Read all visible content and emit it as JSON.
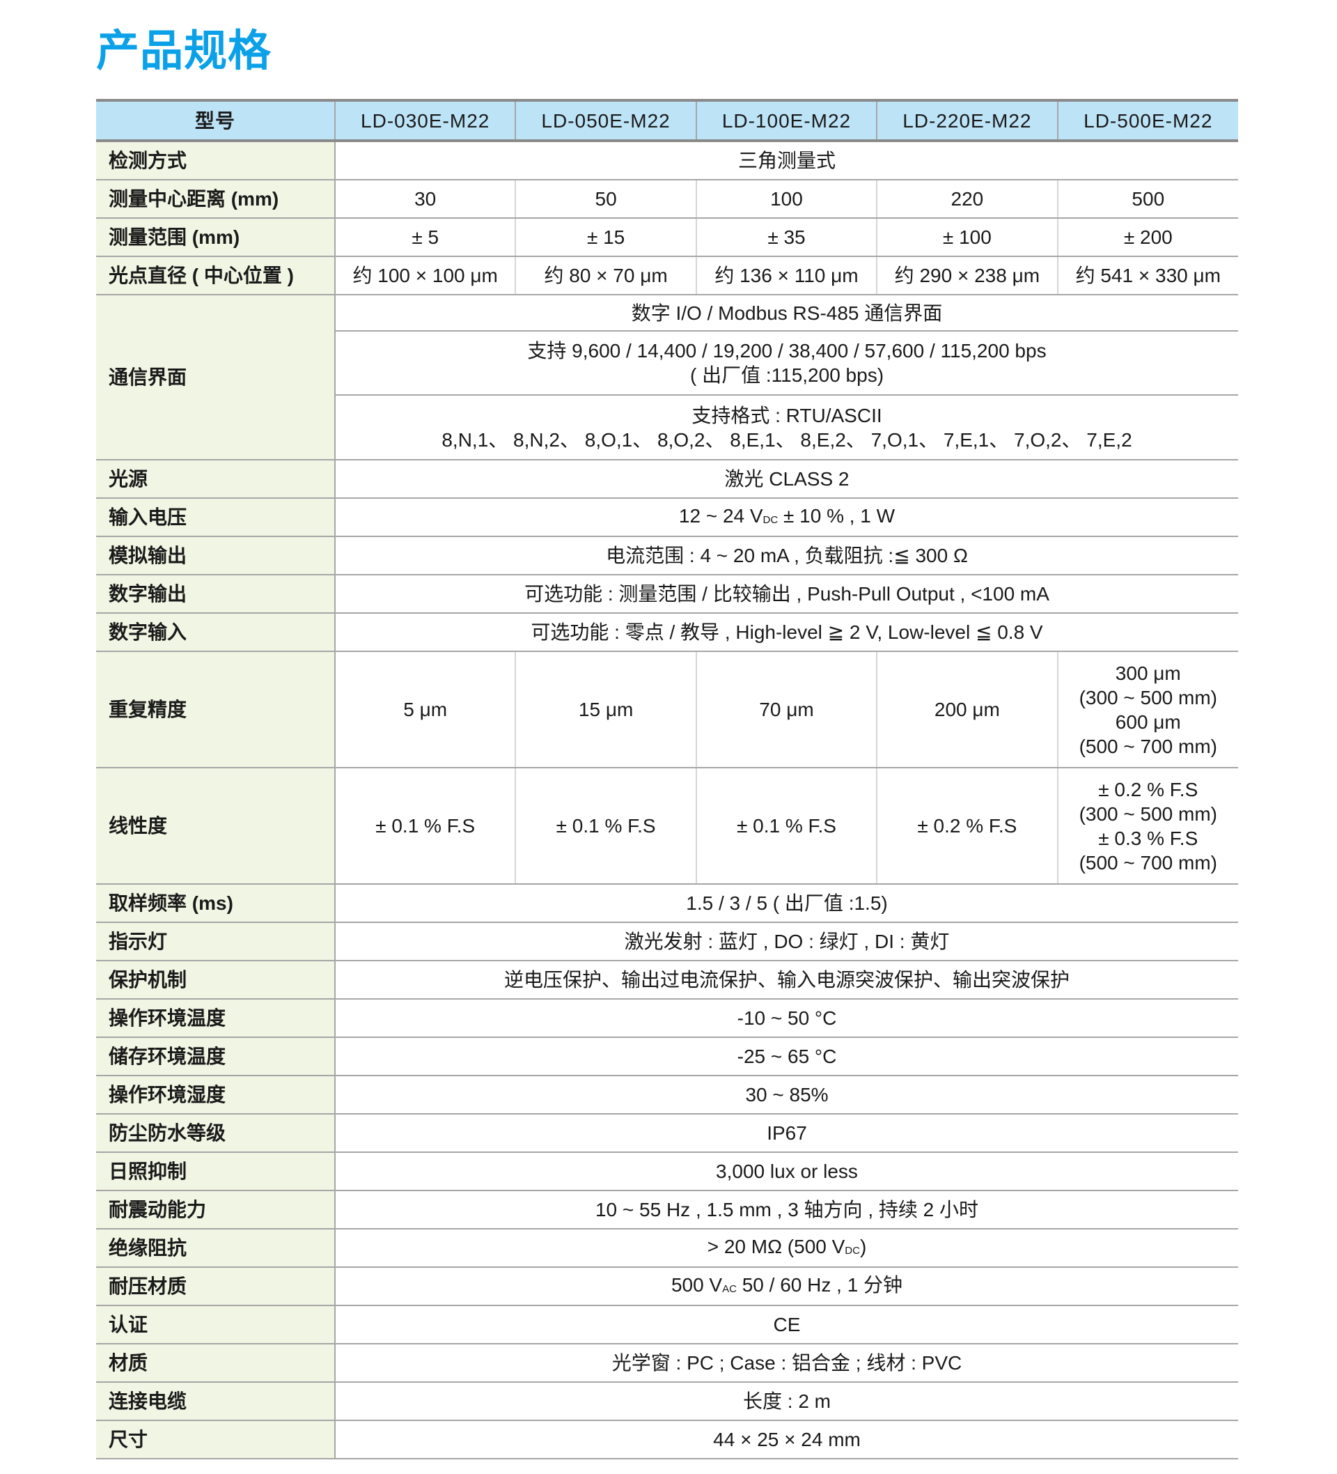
{
  "title": "产品规格",
  "header": {
    "label": "型号",
    "models": [
      "LD-030E-M22",
      "LD-050E-M22",
      "LD-100E-M22",
      "LD-220E-M22",
      "LD-500E-M22"
    ]
  },
  "detect": {
    "label": "检测方式",
    "value": "三角测量式"
  },
  "center": {
    "label": "测量中心距离 (mm)",
    "values": [
      "30",
      "50",
      "100",
      "220",
      "500"
    ]
  },
  "range": {
    "label": "测量范围 (mm)",
    "values": [
      "± 5",
      "± 15",
      "± 35",
      "± 100",
      "± 200"
    ]
  },
  "spot": {
    "label": "光点直径 ( 中心位置 )",
    "values": [
      "约 100 × 100 μm",
      "约 80 × 70 μm",
      "约 136 × 110 μm",
      "约 290 × 238 μm",
      "约 541 × 330 μm"
    ]
  },
  "comm": {
    "label": "通信界面",
    "line1": "数字 I/O / Modbus RS-485 通信界面",
    "line2a": "支持 9,600 / 14,400 / 19,200 / 38,400 / 57,600 / 115,200 bps",
    "line2b": "( 出厂值 :115,200 bps)",
    "line3a": "支持格式 : RTU/ASCII",
    "line3b": "8,N,1、 8,N,2、 8,O,1、 8,O,2、 8,E,1、 8,E,2、 7,O,1、 7,E,1、 7,O,2、 7,E,2"
  },
  "light": {
    "label": "光源",
    "value": "激光 CLASS 2"
  },
  "voltage": {
    "label": "输入电压",
    "pre": "12 ~ 24 V",
    "sub": "DC",
    "post": " ± 10 % , 1 W"
  },
  "analog": {
    "label": "模拟输出",
    "value": "电流范围 : 4 ~ 20 mA , 负载阻抗 :≦ 300 Ω"
  },
  "dout": {
    "label": "数字输出",
    "value": "可选功能 : 测量范围 / 比较输出 , Push-Pull Output , <100 mA"
  },
  "din": {
    "label": "数字输入",
    "value": "可选功能 : 零点 / 教导 , High-level ≧ 2 V, Low-level ≦ 0.8 V"
  },
  "repeat": {
    "label": "重复精度",
    "values": [
      "5 μm",
      "15 μm",
      "70 μm",
      "200 μm"
    ],
    "last": [
      "300 μm",
      "(300 ~ 500 mm)",
      "600 μm",
      "(500 ~ 700 mm)"
    ]
  },
  "linear": {
    "label": "线性度",
    "values": [
      "± 0.1 % F.S",
      "± 0.1 % F.S",
      "± 0.1 % F.S",
      "± 0.2 % F.S"
    ],
    "last": [
      "± 0.2 % F.S",
      "(300 ~ 500 mm)",
      "± 0.3 % F.S",
      "(500 ~ 700 mm)"
    ]
  },
  "rows": [
    {
      "label": "取样频率 (ms)",
      "value": "1.5 / 3 / 5 ( 出厂值 :1.5)"
    },
    {
      "label": "指示灯",
      "value": "激光发射 : 蓝灯 , DO : 绿灯 , DI : 黄灯"
    },
    {
      "label": "保护机制",
      "value": "逆电压保护、输出过电流保护、输入电源突波保护、输出突波保护"
    },
    {
      "label": "操作环境温度",
      "value": "-10 ~ 50 °C"
    },
    {
      "label": "储存环境温度",
      "value": "-25 ~ 65 °C"
    },
    {
      "label": "操作环境湿度",
      "value": "30 ~ 85%"
    },
    {
      "label": "防尘防水等级",
      "value": "IP67"
    },
    {
      "label": "日照抑制",
      "value": "3,000 lux or less"
    },
    {
      "label": "耐震动能力",
      "value": "10 ~ 55 Hz , 1.5 mm , 3 轴方向 , 持续 2 小时"
    }
  ],
  "insulation": {
    "label": "绝缘阻抗",
    "pre": "> 20 MΩ (500 V",
    "sub": "DC",
    "post": ")"
  },
  "withstand": {
    "label": "耐压材质",
    "pre": "500 V",
    "sub": "AC",
    "post": " 50 / 60 Hz , 1 分钟"
  },
  "rows2": [
    {
      "label": "认证",
      "value": "CE"
    },
    {
      "label": "材质",
      "value": "光学窗 : PC ; Case : 铝合金 ; 线材 : PVC"
    },
    {
      "label": "连接电缆",
      "value": "长度 : 2 m"
    },
    {
      "label": "尺寸",
      "value": "44 × 25 × 24 mm"
    }
  ],
  "colors": {
    "title": "#0aa1e8",
    "header_bg": "#bde3f7",
    "label_bg": "#f1f5e3"
  }
}
